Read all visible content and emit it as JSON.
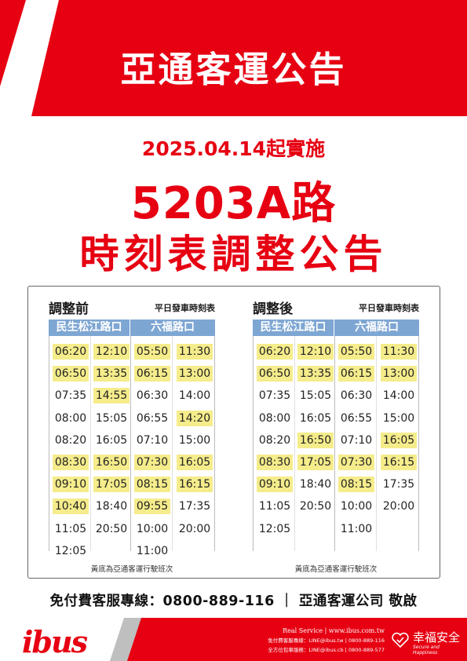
{
  "header": {
    "title": "亞通客運公告"
  },
  "effective_date": "2025.04.14起實施",
  "route": "5203A路",
  "notice_title": "時刻表調整公告",
  "timetables": {
    "before": {
      "label": "調整前",
      "subtitle": "平日發車時刻表",
      "col_heads": [
        "民生松江路口",
        "六福路口"
      ],
      "cols": [
        [
          {
            "t": "06:20",
            "hl": true
          },
          {
            "t": "06:50",
            "hl": true
          },
          {
            "t": "07:35",
            "hl": false
          },
          {
            "t": "08:00",
            "hl": false
          },
          {
            "t": "08:20",
            "hl": false
          },
          {
            "t": "08:30",
            "hl": true
          },
          {
            "t": "09:10",
            "hl": true
          },
          {
            "t": "10:40",
            "hl": true
          },
          {
            "t": "11:05",
            "hl": false
          },
          {
            "t": "12:05",
            "hl": false
          }
        ],
        [
          {
            "t": "12:10",
            "hl": true
          },
          {
            "t": "13:35",
            "hl": true
          },
          {
            "t": "14:55",
            "hl": true
          },
          {
            "t": "15:05",
            "hl": false
          },
          {
            "t": "16:05",
            "hl": false
          },
          {
            "t": "16:50",
            "hl": true
          },
          {
            "t": "17:05",
            "hl": true
          },
          {
            "t": "18:40",
            "hl": false
          },
          {
            "t": "20:50",
            "hl": false
          }
        ],
        [
          {
            "t": "05:50",
            "hl": true
          },
          {
            "t": "06:15",
            "hl": true
          },
          {
            "t": "06:30",
            "hl": false
          },
          {
            "t": "06:55",
            "hl": false
          },
          {
            "t": "07:10",
            "hl": false
          },
          {
            "t": "07:30",
            "hl": true
          },
          {
            "t": "08:15",
            "hl": true
          },
          {
            "t": "09:55",
            "hl": true
          },
          {
            "t": "10:00",
            "hl": false
          },
          {
            "t": "11:00",
            "hl": false
          }
        ],
        [
          {
            "t": "11:30",
            "hl": true
          },
          {
            "t": "13:00",
            "hl": true
          },
          {
            "t": "14:00",
            "hl": false
          },
          {
            "t": "14:20",
            "hl": true
          },
          {
            "t": "15:00",
            "hl": false
          },
          {
            "t": "16:05",
            "hl": true
          },
          {
            "t": "16:15",
            "hl": true
          },
          {
            "t": "17:35",
            "hl": false
          },
          {
            "t": "20:00",
            "hl": false
          }
        ]
      ],
      "note": "黃底為亞通客運行駛班次"
    },
    "after": {
      "label": "調整後",
      "subtitle": "平日發車時刻表",
      "col_heads": [
        "民生松江路口",
        "六福路口"
      ],
      "cols": [
        [
          {
            "t": "06:20",
            "hl": true
          },
          {
            "t": "06:50",
            "hl": true
          },
          {
            "t": "07:35",
            "hl": false
          },
          {
            "t": "08:00",
            "hl": false
          },
          {
            "t": "08:20",
            "hl": false
          },
          {
            "t": "08:30",
            "hl": true
          },
          {
            "t": "09:10",
            "hl": true
          },
          {
            "t": "11:05",
            "hl": false
          },
          {
            "t": "12:05",
            "hl": false
          }
        ],
        [
          {
            "t": "12:10",
            "hl": true
          },
          {
            "t": "13:35",
            "hl": true
          },
          {
            "t": "15:05",
            "hl": false
          },
          {
            "t": "16:05",
            "hl": false
          },
          {
            "t": "16:50",
            "hl": true
          },
          {
            "t": "17:05",
            "hl": true
          },
          {
            "t": "18:40",
            "hl": false
          },
          {
            "t": "20:50",
            "hl": false
          }
        ],
        [
          {
            "t": "05:50",
            "hl": true
          },
          {
            "t": "06:15",
            "hl": true
          },
          {
            "t": "06:30",
            "hl": false
          },
          {
            "t": "06:55",
            "hl": false
          },
          {
            "t": "07:10",
            "hl": false
          },
          {
            "t": "07:30",
            "hl": true
          },
          {
            "t": "08:15",
            "hl": true
          },
          {
            "t": "10:00",
            "hl": false
          },
          {
            "t": "11:00",
            "hl": false
          }
        ],
        [
          {
            "t": "11:30",
            "hl": true
          },
          {
            "t": "13:00",
            "hl": true
          },
          {
            "t": "14:00",
            "hl": false
          },
          {
            "t": "15:00",
            "hl": false
          },
          {
            "t": "16:05",
            "hl": true
          },
          {
            "t": "16:15",
            "hl": true
          },
          {
            "t": "17:35",
            "hl": false
          },
          {
            "t": "20:00",
            "hl": false
          }
        ]
      ],
      "note": "黃底為亞通客運行駛班次"
    }
  },
  "hotline": "免付費客服專線：0800-889-116 ｜ 亞通客運公司 敬啟",
  "footer": {
    "logo": "ibus",
    "line1": "Real Service | www.ibus.com.tw",
    "line2": "免付費客服專線：LINE@ibus.tw | 0800-889-116",
    "line3": "全方位包車服務：LINE@ibus.cb | 0800-889-577",
    "brand": "幸福安全",
    "brand_sub": "Secure and Happiness"
  },
  "colors": {
    "brand_red": "#e60012",
    "header_blue": "#7ea6d3",
    "highlight_yellow": "#f5ec8b"
  }
}
